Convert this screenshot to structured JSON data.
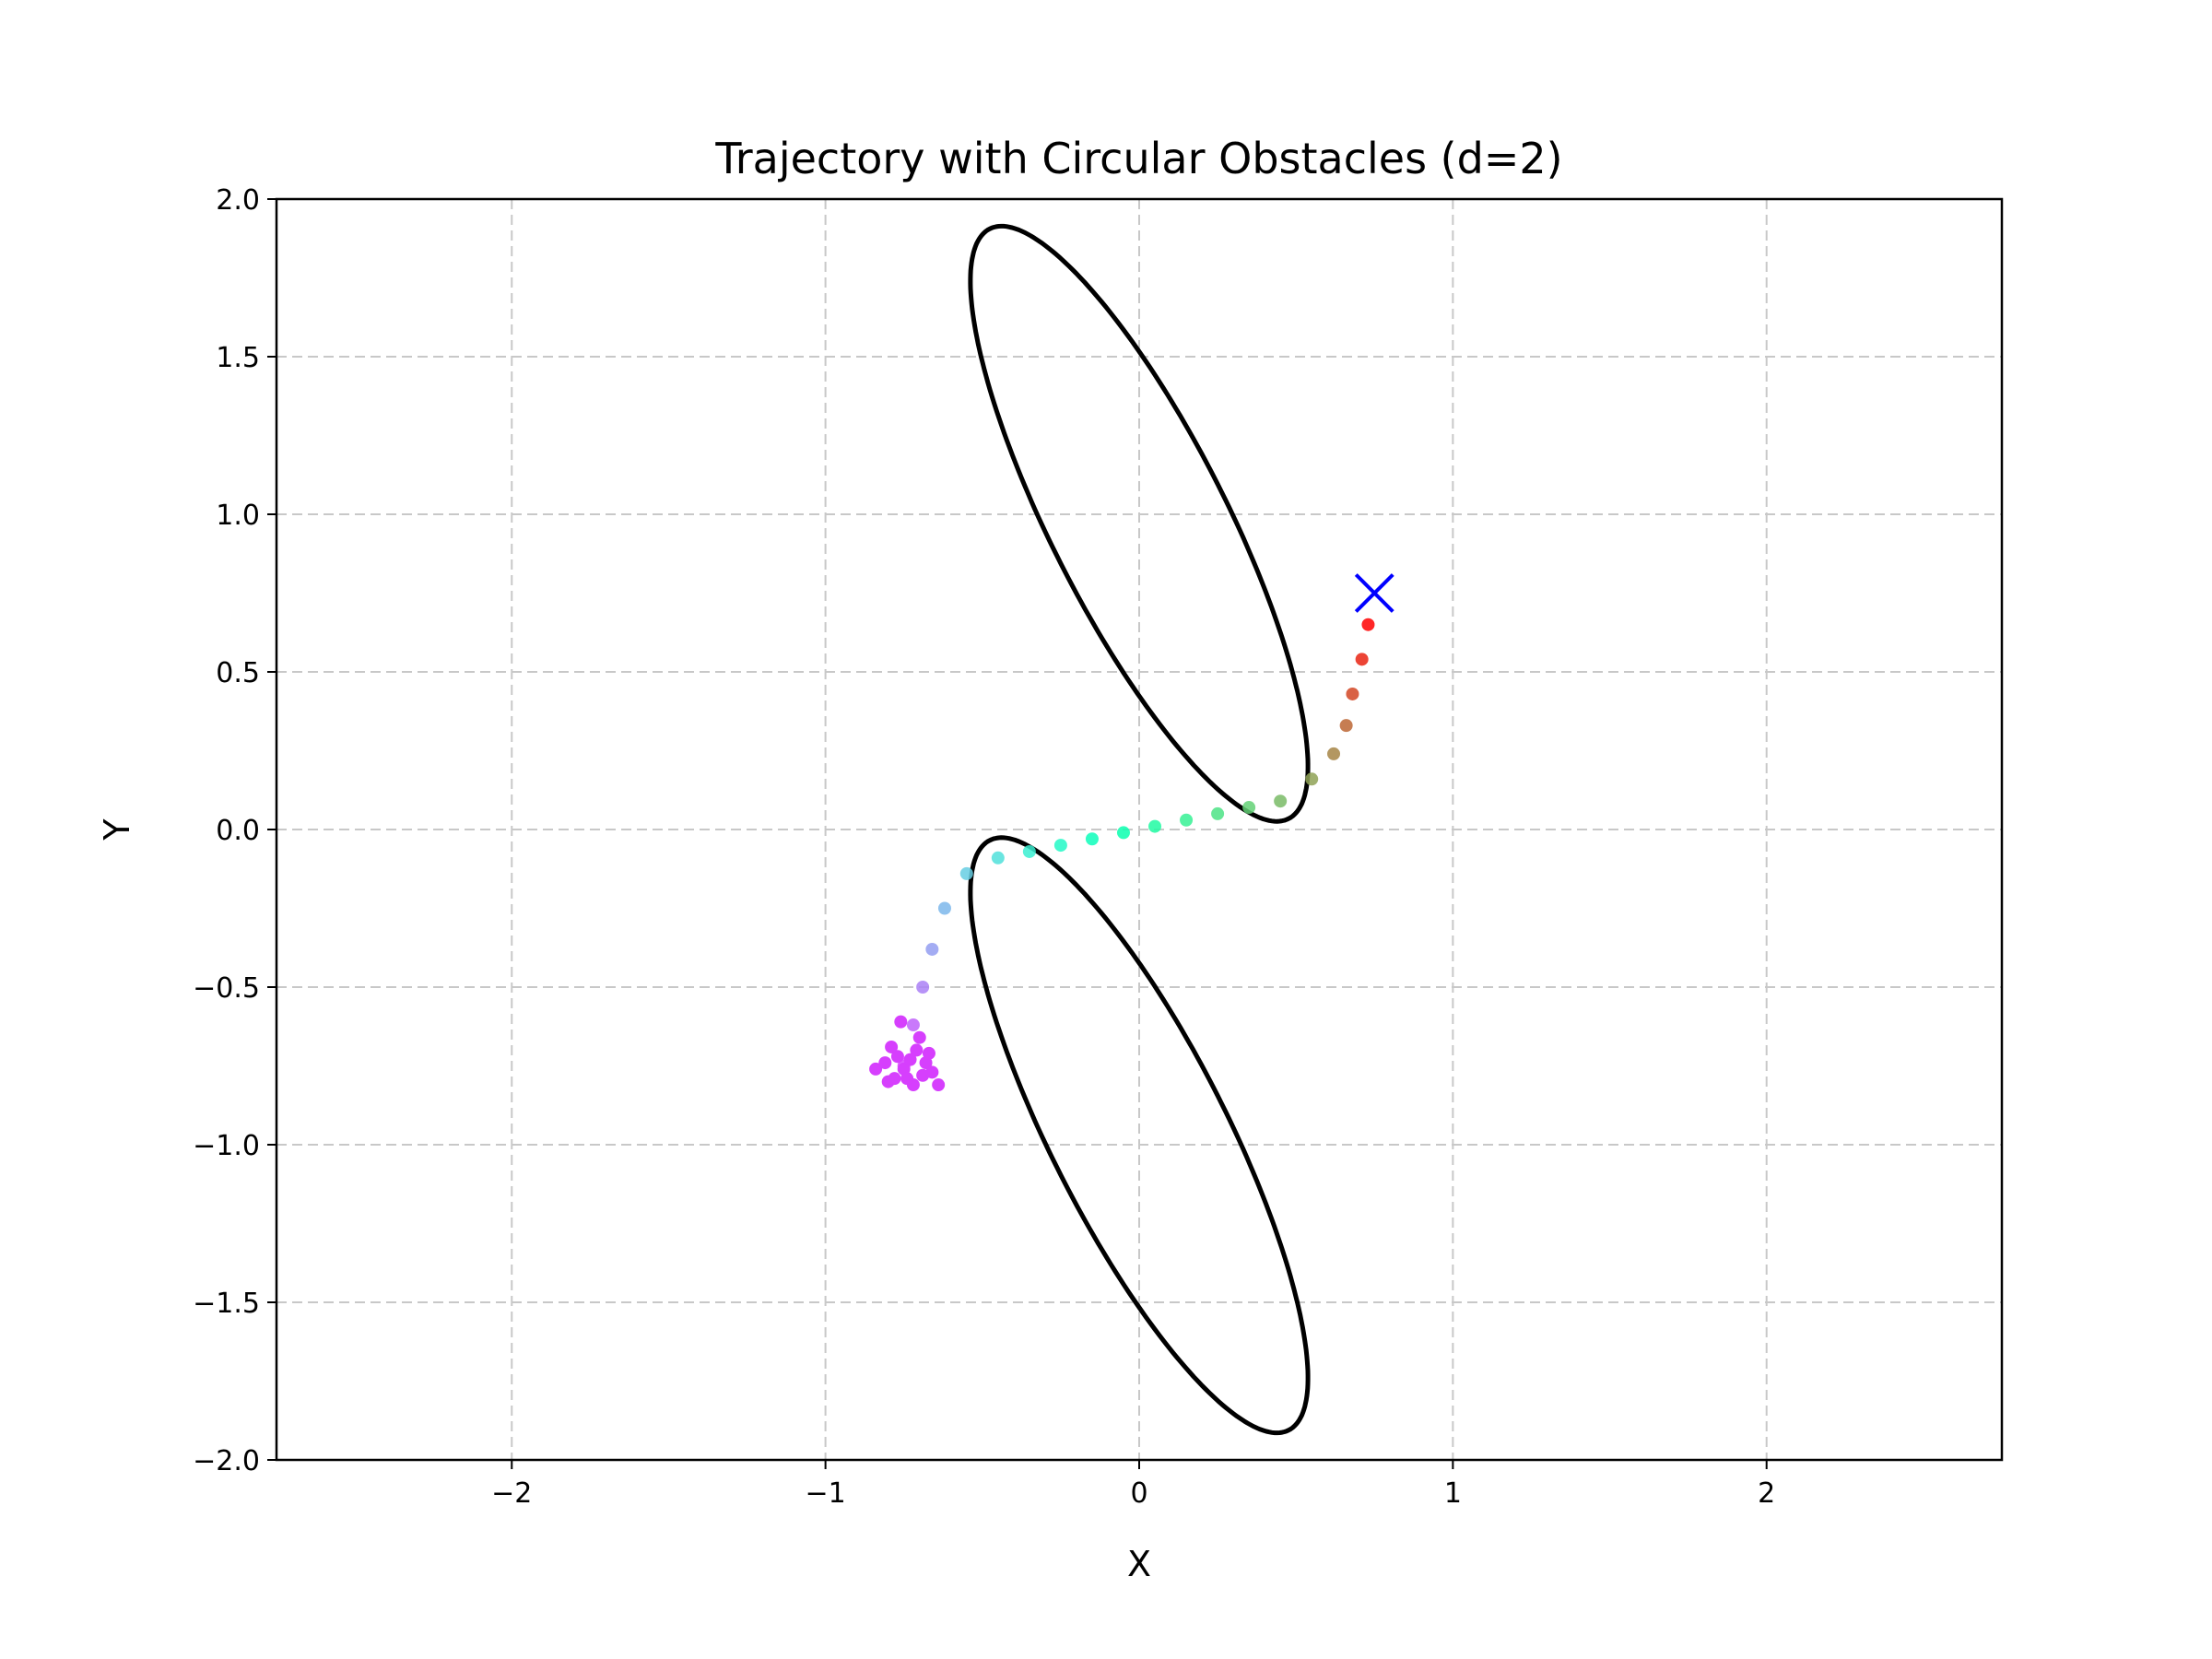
{
  "chart_data": {
    "type": "scatter",
    "title": "Trajectory with Circular Obstacles (d=2)",
    "xlabel": "X",
    "ylabel": "Y",
    "xlim": [
      -2.75,
      2.75
    ],
    "ylim": [
      -2.0,
      2.0
    ],
    "xticks": [
      -2,
      -1,
      0,
      1,
      2
    ],
    "xtick_labels": [
      "−2",
      "−1",
      "0",
      "1",
      "2"
    ],
    "yticks": [
      -2.0,
      -1.5,
      -1.0,
      -0.5,
      0.0,
      0.5,
      1.0,
      1.5,
      2.0
    ],
    "ytick_labels": [
      "−2.0",
      "−1.5",
      "−1.0",
      "−0.5",
      "0.0",
      "0.5",
      "1.0",
      "1.5",
      "2.0"
    ],
    "grid": true,
    "obstacles": [
      {
        "shape": "ellipse",
        "center": [
          0.0,
          0.97
        ],
        "semi_axes": [
          0.28,
          1.05
        ],
        "rotation_deg": 27,
        "color": "#000000"
      },
      {
        "shape": "ellipse",
        "center": [
          0.0,
          -0.97
        ],
        "semi_axes": [
          0.28,
          1.05
        ],
        "rotation_deg": 27,
        "color": "#000000"
      }
    ],
    "target": {
      "x": 0.75,
      "y": 0.75,
      "marker": "x",
      "color": "#0000ff"
    },
    "colormap": "rainbow",
    "trajectory": [
      {
        "x": -0.75,
        "y": -0.75
      },
      {
        "x": -0.72,
        "y": -0.62
      },
      {
        "x": -0.69,
        "y": -0.5
      },
      {
        "x": -0.66,
        "y": -0.38
      },
      {
        "x": -0.62,
        "y": -0.25
      },
      {
        "x": -0.55,
        "y": -0.14
      },
      {
        "x": -0.45,
        "y": -0.09
      },
      {
        "x": -0.35,
        "y": -0.07
      },
      {
        "x": -0.25,
        "y": -0.05
      },
      {
        "x": -0.15,
        "y": -0.03
      },
      {
        "x": -0.05,
        "y": -0.01
      },
      {
        "x": 0.05,
        "y": 0.01
      },
      {
        "x": 0.15,
        "y": 0.03
      },
      {
        "x": 0.25,
        "y": 0.05
      },
      {
        "x": 0.35,
        "y": 0.07
      },
      {
        "x": 0.45,
        "y": 0.09
      },
      {
        "x": 0.55,
        "y": 0.16
      },
      {
        "x": 0.62,
        "y": 0.24
      },
      {
        "x": 0.66,
        "y": 0.33
      },
      {
        "x": 0.68,
        "y": 0.43
      },
      {
        "x": 0.71,
        "y": 0.54
      },
      {
        "x": 0.73,
        "y": 0.65
      }
    ],
    "start_cluster": [
      {
        "x": -0.84,
        "y": -0.76
      },
      {
        "x": -0.81,
        "y": -0.74
      },
      {
        "x": -0.78,
        "y": -0.79
      },
      {
        "x": -0.77,
        "y": -0.72
      },
      {
        "x": -0.75,
        "y": -0.76
      },
      {
        "x": -0.73,
        "y": -0.73
      },
      {
        "x": -0.72,
        "y": -0.81
      },
      {
        "x": -0.71,
        "y": -0.7
      },
      {
        "x": -0.69,
        "y": -0.78
      },
      {
        "x": -0.68,
        "y": -0.74
      },
      {
        "x": -0.66,
        "y": -0.77
      },
      {
        "x": -0.64,
        "y": -0.81
      },
      {
        "x": -0.79,
        "y": -0.69
      },
      {
        "x": -0.76,
        "y": -0.61
      },
      {
        "x": -0.7,
        "y": -0.66
      },
      {
        "x": -0.74,
        "y": -0.79
      },
      {
        "x": -0.67,
        "y": -0.71
      },
      {
        "x": -0.8,
        "y": -0.8
      }
    ]
  }
}
